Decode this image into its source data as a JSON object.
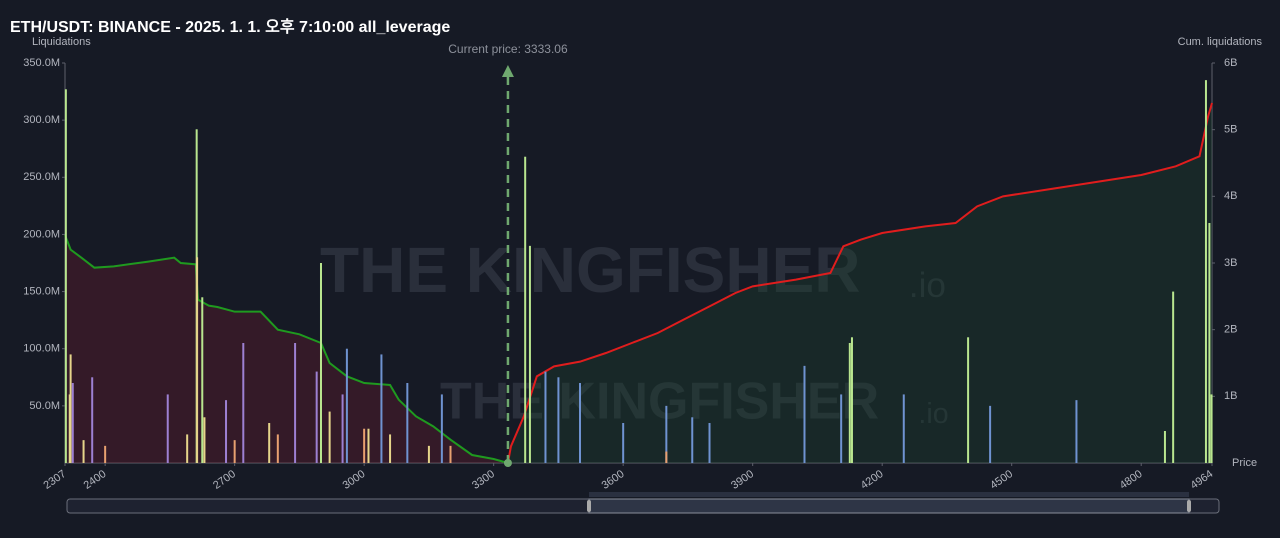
{
  "chart_data": {
    "type": "bar",
    "title": "ETH/USDT: BINANCE - 2025. 1. 1. 오후 7:10:00 all_leverage",
    "y_label": "Liquidations",
    "y2_label": "Cum. liquidations",
    "x_label": "Price",
    "annotation": {
      "text": "Current price: 3333.06",
      "x": 3333.06
    },
    "watermark": [
      "THE KINGFISHER",
      ".io"
    ],
    "xlim": [
      2307,
      4964
    ],
    "xticks": [
      2307,
      2400,
      2700,
      3000,
      3300,
      3600,
      3900,
      4200,
      4500,
      4800,
      4964
    ],
    "ylim": [
      0,
      350000000
    ],
    "yticks": [
      {
        "value": 50000000,
        "label": "50.0M"
      },
      {
        "value": 100000000,
        "label": "100.0M"
      },
      {
        "value": 150000000,
        "label": "150.0M"
      },
      {
        "value": 200000000,
        "label": "200.0M"
      },
      {
        "value": 250000000,
        "label": "250.0M"
      },
      {
        "value": 300000000,
        "label": "300.0M"
      },
      {
        "value": 350000000,
        "label": "350.0M"
      }
    ],
    "y2lim": [
      0,
      6000000000
    ],
    "y2ticks": [
      {
        "value": 1000000000,
        "label": "1B"
      },
      {
        "value": 2000000000,
        "label": "2B"
      },
      {
        "value": 3000000000,
        "label": "3B"
      },
      {
        "value": 4000000000,
        "label": "4B"
      },
      {
        "value": 5000000000,
        "label": "5B"
      },
      {
        "value": 6000000000,
        "label": "6B"
      }
    ],
    "series": [
      {
        "type": "bar",
        "color": "#b9e68f",
        "x": [
          2309,
          2612,
          2625,
          2900,
          3373,
          3384,
          4125,
          4130,
          4399,
          4855,
          4874,
          4950,
          4958,
          4963
        ],
        "values": [
          327000000,
          292000000,
          145000000,
          175000000,
          268000000,
          190000000,
          105000000,
          110000000,
          110000000,
          28000000,
          150000000,
          335000000,
          210000000,
          60000000
        ]
      },
      {
        "type": "bar",
        "color": "#e6d58a",
        "x": [
          2318,
          2320,
          2350,
          2590,
          2613,
          2630,
          2780,
          2920,
          3010,
          3060,
          3150
        ],
        "values": [
          60000000,
          95000000,
          20000000,
          25000000,
          180000000,
          40000000,
          35000000,
          45000000,
          30000000,
          25000000,
          15000000
        ]
      },
      {
        "type": "bar",
        "color": "#9d80d2",
        "x": [
          2325,
          2370,
          2545,
          2720,
          2840,
          2890,
          2950,
          2680
        ],
        "values": [
          70000000,
          75000000,
          60000000,
          105000000,
          105000000,
          80000000,
          60000000,
          55000000
        ]
      },
      {
        "type": "bar",
        "color": "#6f93d1",
        "x": [
          2960,
          3040,
          3100,
          3180,
          3420,
          3450,
          3500,
          3600,
          3700,
          3760,
          3800,
          4020,
          4105,
          4250,
          4450,
          4650
        ],
        "values": [
          100000000,
          95000000,
          70000000,
          60000000,
          80000000,
          75000000,
          70000000,
          35000000,
          50000000,
          40000000,
          35000000,
          85000000,
          60000000,
          60000000,
          50000000,
          55000000
        ]
      },
      {
        "type": "bar",
        "color": "#e8a070",
        "x": [
          2400,
          2700,
          2800,
          3000,
          3200,
          3700
        ],
        "values": [
          15000000,
          20000000,
          25000000,
          30000000,
          15000000,
          10000000
        ]
      },
      {
        "type": "line",
        "axis": "y2",
        "color": "#1f9a1f",
        "fill": "rgba(110,30,45,0.35)",
        "x": [
          2307,
          2320,
          2345,
          2375,
          2420,
          2500,
          2560,
          2575,
          2610,
          2615,
          2640,
          2660,
          2700,
          2760,
          2800,
          2850,
          2900,
          2920,
          2960,
          3000,
          3060,
          3080,
          3120,
          3160,
          3200,
          3250,
          3300,
          3333
        ],
        "values": [
          3420000000,
          3200000000,
          3080000000,
          2930000000,
          2950000000,
          3020000000,
          3080000000,
          3000000000,
          2980000000,
          2450000000,
          2360000000,
          2340000000,
          2270000000,
          2270000000,
          2000000000,
          1930000000,
          1800000000,
          1500000000,
          1300000000,
          1200000000,
          1170000000,
          950000000,
          700000000,
          550000000,
          350000000,
          120000000,
          60000000,
          0
        ]
      },
      {
        "type": "line",
        "axis": "y2",
        "color": "#e01d1d",
        "fill": "rgba(30,70,45,0.35)",
        "x": [
          3333,
          3340,
          3370,
          3400,
          3440,
          3500,
          3560,
          3620,
          3680,
          3740,
          3800,
          3860,
          3900,
          4000,
          4080,
          4110,
          4150,
          4200,
          4300,
          4370,
          4420,
          4480,
          4600,
          4800,
          4880,
          4935,
          4955,
          4964
        ],
        "values": [
          0,
          250000000,
          700000000,
          1300000000,
          1450000000,
          1520000000,
          1650000000,
          1800000000,
          1950000000,
          2150000000,
          2350000000,
          2550000000,
          2650000000,
          2750000000,
          2850000000,
          3250000000,
          3350000000,
          3450000000,
          3550000000,
          3600000000,
          3850000000,
          4000000000,
          4120000000,
          4320000000,
          4450000000,
          4600000000,
          5200000000,
          5400000000
        ]
      }
    ]
  }
}
